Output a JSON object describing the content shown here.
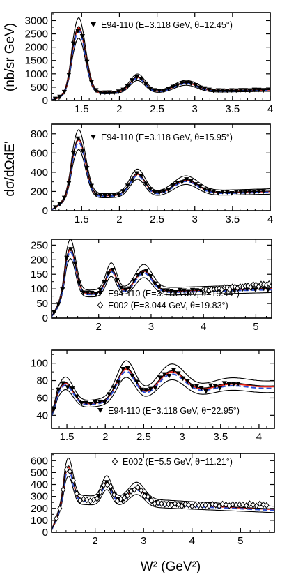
{
  "figure": {
    "ylabel_top": "(nb/sr GeV)",
    "ylabel_main": "dσ/dΩdE'",
    "xlabel": "W² (GeV²)"
  },
  "chart_data": [
    {
      "type": "line",
      "xlim": [
        1.1,
        4.0
      ],
      "ylim": [
        0,
        3300
      ],
      "xticks": [
        "1.5",
        "2",
        "2.5",
        "3",
        "3.5",
        "4"
      ],
      "yticks": [
        "0",
        "500",
        "1000",
        "1500",
        "2000",
        "2500",
        "3000"
      ],
      "legend": [
        {
          "marker": "triangle-down",
          "label": "E94-110 (E=3.118 GeV, θ=12.45°)"
        }
      ],
      "legend_position": "top-right",
      "model": {
        "base": 300,
        "slope": 50,
        "peaks": [
          [
            1.46,
            2450,
            0.09
          ],
          [
            2.24,
            560,
            0.1
          ],
          [
            2.88,
            320,
            0.15
          ]
        ]
      },
      "data_series": [
        {
          "marker": "triangle-down",
          "x_range": [
            1.15,
            3.95
          ],
          "step": 0.06
        }
      ]
    },
    {
      "type": "line",
      "xlim": [
        1.1,
        4.0
      ],
      "ylim": [
        0,
        900
      ],
      "xticks": [
        "1.5",
        "2",
        "2.5",
        "3",
        "3.5",
        "4"
      ],
      "yticks": [
        "0",
        "200",
        "400",
        "600",
        "800"
      ],
      "legend": [
        {
          "marker": "triangle-down",
          "label": "E94-110 (E=3.118 GeV, θ=15.95°)"
        }
      ],
      "legend_position": "top-right",
      "model": {
        "base": 160,
        "slope": 20,
        "peaks": [
          [
            1.46,
            590,
            0.09
          ],
          [
            2.24,
            215,
            0.1
          ],
          [
            2.88,
            140,
            0.16
          ]
        ]
      },
      "data_series": [
        {
          "marker": "triangle-down",
          "x_range": [
            1.15,
            3.95
          ],
          "step": 0.06
        }
      ]
    },
    {
      "type": "line",
      "xlim": [
        1.1,
        5.3
      ],
      "ylim": [
        0,
        270
      ],
      "xticks": [
        "2",
        "3",
        "4",
        "5"
      ],
      "yticks": [
        "0",
        "50",
        "100",
        "150",
        "200",
        "250"
      ],
      "legend": [
        {
          "marker": "triangle-down",
          "label": "E94-110 (E=3.118 GeV, θ=19.44°)"
        },
        {
          "marker": "diamond-open",
          "label": "E002 (E=3.044 GeV, θ=19.83°)"
        }
      ],
      "legend_position": "bottom-right",
      "model": {
        "base": 85,
        "slope": 5,
        "peaks": [
          [
            1.46,
            155,
            0.1
          ],
          [
            2.24,
            80,
            0.1
          ],
          [
            2.86,
            72,
            0.16
          ]
        ]
      },
      "data_series": [
        {
          "marker": "triangle-down",
          "x_range": [
            1.15,
            5.25
          ],
          "step": 0.08
        },
        {
          "marker": "diamond-open",
          "x_range": [
            4.0,
            5.28
          ],
          "step": 0.05
        }
      ]
    },
    {
      "type": "line",
      "xlim": [
        1.3,
        4.2
      ],
      "ylim": [
        25,
        115
      ],
      "xticks": [
        "1.5",
        "2",
        "2.5",
        "3",
        "3.5",
        "4"
      ],
      "yticks": [
        "40",
        "60",
        "80",
        "100"
      ],
      "legend": [
        {
          "marker": "triangle-down",
          "label": "E94-110 (E=3.118 GeV, θ=22.95°)"
        }
      ],
      "legend_position": "bottom-right",
      "model": {
        "base": 55,
        "slope": 8,
        "peaks": [
          [
            1.48,
            26,
            0.1
          ],
          [
            2.27,
            36,
            0.12
          ],
          [
            2.86,
            28,
            0.18
          ],
          [
            3.6,
            8,
            0.25
          ]
        ]
      },
      "data_series": [
        {
          "marker": "triangle-down",
          "x_range": [
            1.33,
            3.78
          ],
          "step": 0.06
        }
      ]
    },
    {
      "type": "line",
      "xlim": [
        1.1,
        5.7
      ],
      "ylim": [
        0,
        660
      ],
      "xticks": [
        "2",
        "3",
        "4",
        "5"
      ],
      "yticks": [
        "0",
        "100",
        "200",
        "300",
        "400",
        "500",
        "600"
      ],
      "legend": [
        {
          "marker": "diamond-open",
          "label": "E002 (E=5.5 GeV, θ=11.21°)"
        }
      ],
      "legend_position": "top-right",
      "model": {
        "base": 265,
        "slope": -20,
        "peaks": [
          [
            1.45,
            270,
            0.09
          ],
          [
            2.24,
            155,
            0.1
          ],
          [
            2.86,
            120,
            0.16
          ]
        ]
      },
      "data_series": [
        {
          "marker": "triangle-down",
          "x_range": [
            2.0,
            3.9
          ],
          "step": 0.08
        },
        {
          "marker": "diamond-open",
          "x_range": [
            1.2,
            5.6
          ],
          "step": 0.07
        }
      ]
    }
  ]
}
